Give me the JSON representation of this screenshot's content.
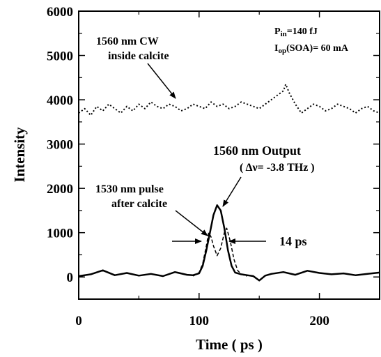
{
  "chart_data": {
    "type": "line",
    "xlabel": "Time ( ps )",
    "ylabel": "Intensity",
    "xlim": [
      0,
      250
    ],
    "ylim": [
      -500,
      6000
    ],
    "xticks": [
      "0",
      "100",
      "200"
    ],
    "yticks": [
      "0",
      "1000",
      "2000",
      "3000",
      "4000",
      "5000",
      "6000"
    ],
    "grid": false,
    "series": [
      {
        "name": "1560 nm CW inside calcite",
        "style": "dotted",
        "x": [
          0,
          5,
          10,
          15,
          20,
          25,
          30,
          35,
          40,
          45,
          50,
          55,
          60,
          65,
          70,
          75,
          80,
          85,
          90,
          95,
          100,
          105,
          110,
          115,
          120,
          125,
          130,
          135,
          140,
          145,
          150,
          155,
          160,
          165,
          170,
          172,
          175,
          180,
          185,
          190,
          195,
          200,
          205,
          210,
          215,
          220,
          225,
          230,
          235,
          240,
          245,
          250
        ],
        "y": [
          3700,
          3800,
          3650,
          3850,
          3750,
          3900,
          3800,
          3700,
          3850,
          3750,
          3900,
          3800,
          3950,
          3850,
          3800,
          3900,
          3850,
          3750,
          3800,
          3900,
          3850,
          3800,
          3950,
          3850,
          3900,
          3800,
          3850,
          3950,
          3900,
          3850,
          3800,
          3900,
          4000,
          4100,
          4200,
          4350,
          4150,
          3900,
          3700,
          3800,
          3900,
          3850,
          3750,
          3800,
          3900,
          3850,
          3800,
          3700,
          3800,
          3850,
          3750,
          3700
        ]
      },
      {
        "name": "1560 nm Output",
        "style": "solid",
        "x": [
          0,
          10,
          20,
          30,
          40,
          50,
          60,
          70,
          80,
          90,
          95,
          100,
          103,
          106,
          109,
          112,
          115,
          118,
          121,
          124,
          127,
          130,
          135,
          140,
          145,
          150,
          155,
          160,
          170,
          180,
          190,
          200,
          210,
          220,
          230,
          240,
          250
        ],
        "y": [
          20,
          60,
          150,
          40,
          90,
          30,
          70,
          20,
          110,
          50,
          40,
          80,
          250,
          600,
          1000,
          1400,
          1620,
          1500,
          1100,
          600,
          250,
          100,
          60,
          40,
          20,
          -80,
          30,
          70,
          110,
          50,
          140,
          90,
          60,
          80,
          40,
          70,
          100
        ]
      },
      {
        "name": "1530 nm pulse after calcite",
        "style": "dashed",
        "x": [
          95,
          100,
          103,
          106,
          108,
          110,
          112,
          115,
          118,
          121,
          123,
          126,
          129,
          132,
          135,
          140
        ],
        "y": [
          20,
          100,
          300,
          700,
          1000,
          900,
          700,
          480,
          650,
          1000,
          1100,
          800,
          400,
          150,
          60,
          20
        ]
      }
    ],
    "annotations": {
      "cw_label_line1": "1560 nm CW",
      "cw_label_line2": "inside calcite",
      "pin_label": "P",
      "pin_sub": "in",
      "pin_value": "=140 fJ",
      "iop_label": "I",
      "iop_sub": "op",
      "iop_value": "(SOA)= 60 mA",
      "output_label": "1560 nm Output",
      "detuning_label": "( Δν= -3.8 THz )",
      "pulse_label_line1": "1530 nm pulse",
      "pulse_label_line2": "after calcite",
      "width_label": "14 ps"
    }
  }
}
